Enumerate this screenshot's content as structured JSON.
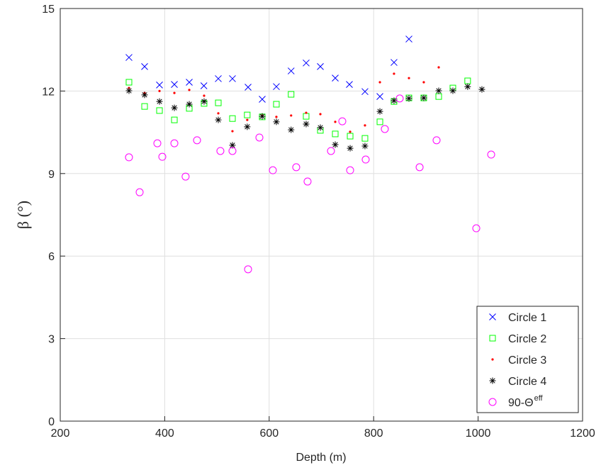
{
  "chart_data": {
    "type": "scatter",
    "xlabel": "Depth (m)",
    "ylabel": "β (°)",
    "xlim": [
      200,
      1200
    ],
    "xticks": [
      200,
      400,
      600,
      800,
      1000,
      1200
    ],
    "ylim": [
      0,
      15
    ],
    "yticks": [
      0,
      3,
      6,
      9,
      12,
      15
    ],
    "grid": true,
    "legend_position": "lower right",
    "series": [
      {
        "name": "Circle 1",
        "color": "#0000ff",
        "marker": "x",
        "x": [
          331.6,
          361.5,
          390,
          418.5,
          447,
          475,
          502.6,
          529.7,
          559.6,
          586.7,
          613.8,
          642,
          670.8,
          698,
          726.5,
          753.6,
          783.4,
          812,
          839,
          867.6
        ],
        "values": [
          13.22,
          12.89,
          12.22,
          12.24,
          12.32,
          12.19,
          12.45,
          12.45,
          12.14,
          11.7,
          12.16,
          12.73,
          13.02,
          12.89,
          12.47,
          12.24,
          11.98,
          11.8,
          13.04,
          13.89
        ]
      },
      {
        "name": "Circle 2",
        "color": "#00ff00",
        "marker": "square",
        "x": [
          331.6,
          361.5,
          390,
          418.5,
          447,
          475.4,
          502.6,
          529.7,
          558,
          586.7,
          613.8,
          642,
          670.8,
          698,
          726.5,
          755,
          783.4,
          812,
          839,
          867.6,
          896,
          924.6,
          951.7,
          980
        ],
        "values": [
          12.32,
          11.44,
          11.29,
          10.95,
          11.37,
          11.55,
          11.57,
          11.0,
          11.13,
          11.06,
          11.52,
          11.88,
          11.08,
          10.57,
          10.44,
          10.36,
          10.28,
          10.88,
          11.62,
          11.75,
          11.75,
          11.8,
          12.11,
          12.37
        ]
      },
      {
        "name": "Circle 3",
        "color": "#ff0000",
        "marker": "dot",
        "x": [
          331.6,
          361.5,
          390,
          418.5,
          447,
          475.4,
          502.6,
          529.7,
          558,
          586.7,
          613.8,
          642,
          670.8,
          698,
          726.5,
          755,
          783.4,
          812,
          839,
          867.6,
          896,
          924.6
        ],
        "values": [
          12.11,
          11.93,
          12.0,
          11.93,
          12.04,
          11.83,
          11.19,
          10.54,
          10.95,
          11.11,
          11.06,
          11.11,
          11.21,
          11.16,
          10.88,
          10.52,
          10.75,
          12.32,
          12.63,
          12.47,
          12.32,
          12.86
        ]
      },
      {
        "name": "Circle 4",
        "color": "#000000",
        "marker": "star",
        "x": [
          331.6,
          361.5,
          390,
          418.5,
          447,
          475.4,
          502.6,
          529.7,
          558,
          586.7,
          613.8,
          642,
          670.8,
          698,
          726.5,
          755,
          783.4,
          812,
          839,
          867.6,
          896,
          924.6,
          951.7,
          980,
          1007.3
        ],
        "values": [
          12.01,
          11.86,
          11.62,
          11.39,
          11.52,
          11.62,
          10.95,
          10.03,
          10.7,
          11.08,
          10.88,
          10.59,
          10.8,
          10.67,
          10.05,
          9.92,
          10.0,
          11.26,
          11.65,
          11.73,
          11.75,
          12.01,
          12.01,
          12.16,
          12.06
        ]
      },
      {
        "name": "90-Θ",
        "name_superscript": "eff",
        "color": "#ff00ff",
        "marker": "circle",
        "x": [
          331.6,
          352,
          385.9,
          395.4,
          418.5,
          440,
          461.9,
          506.6,
          529.7,
          559.6,
          581.3,
          607,
          651.8,
          673.5,
          718.3,
          740,
          755,
          784.8,
          821.4,
          849.9,
          888,
          920.5,
          996.5,
          1025
        ],
        "values": [
          9.59,
          8.32,
          10.1,
          9.61,
          10.1,
          8.89,
          10.21,
          9.82,
          9.82,
          5.52,
          10.31,
          9.12,
          9.23,
          8.71,
          9.82,
          10.9,
          9.12,
          9.51,
          10.62,
          11.73,
          9.23,
          10.21,
          7.01,
          9.69
        ]
      }
    ]
  }
}
